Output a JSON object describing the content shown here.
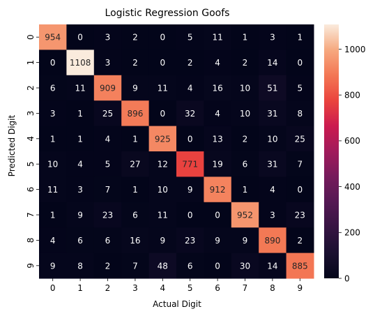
{
  "chart_data": {
    "type": "heatmap",
    "title": "Logistic Regression Goofs",
    "xlabel": "Actual Digit",
    "ylabel": "Predicted Digit",
    "x_categories": [
      "0",
      "1",
      "2",
      "3",
      "4",
      "5",
      "6",
      "7",
      "8",
      "9"
    ],
    "y_categories": [
      "0",
      "1",
      "2",
      "3",
      "4",
      "5",
      "6",
      "7",
      "8",
      "9"
    ],
    "values": [
      [
        954,
        0,
        3,
        2,
        0,
        5,
        11,
        1,
        3,
        1
      ],
      [
        0,
        1108,
        3,
        2,
        0,
        2,
        4,
        2,
        14,
        0
      ],
      [
        6,
        11,
        909,
        9,
        11,
        4,
        16,
        10,
        51,
        5
      ],
      [
        3,
        1,
        25,
        896,
        0,
        32,
        4,
        10,
        31,
        8
      ],
      [
        1,
        1,
        4,
        1,
        925,
        0,
        13,
        2,
        10,
        25
      ],
      [
        10,
        4,
        5,
        27,
        12,
        771,
        19,
        6,
        31,
        7
      ],
      [
        11,
        3,
        7,
        1,
        10,
        9,
        912,
        1,
        4,
        0
      ],
      [
        1,
        9,
        23,
        6,
        11,
        0,
        0,
        952,
        3,
        23
      ],
      [
        4,
        6,
        6,
        16,
        9,
        23,
        9,
        9,
        890,
        2
      ],
      [
        9,
        8,
        2,
        7,
        48,
        6,
        0,
        30,
        14,
        885
      ]
    ],
    "vmin": 0,
    "vmax": 1108,
    "colorbar_ticks": [
      0,
      200,
      400,
      600,
      800,
      1000
    ],
    "colormap": "rocket",
    "colorbar": true
  }
}
